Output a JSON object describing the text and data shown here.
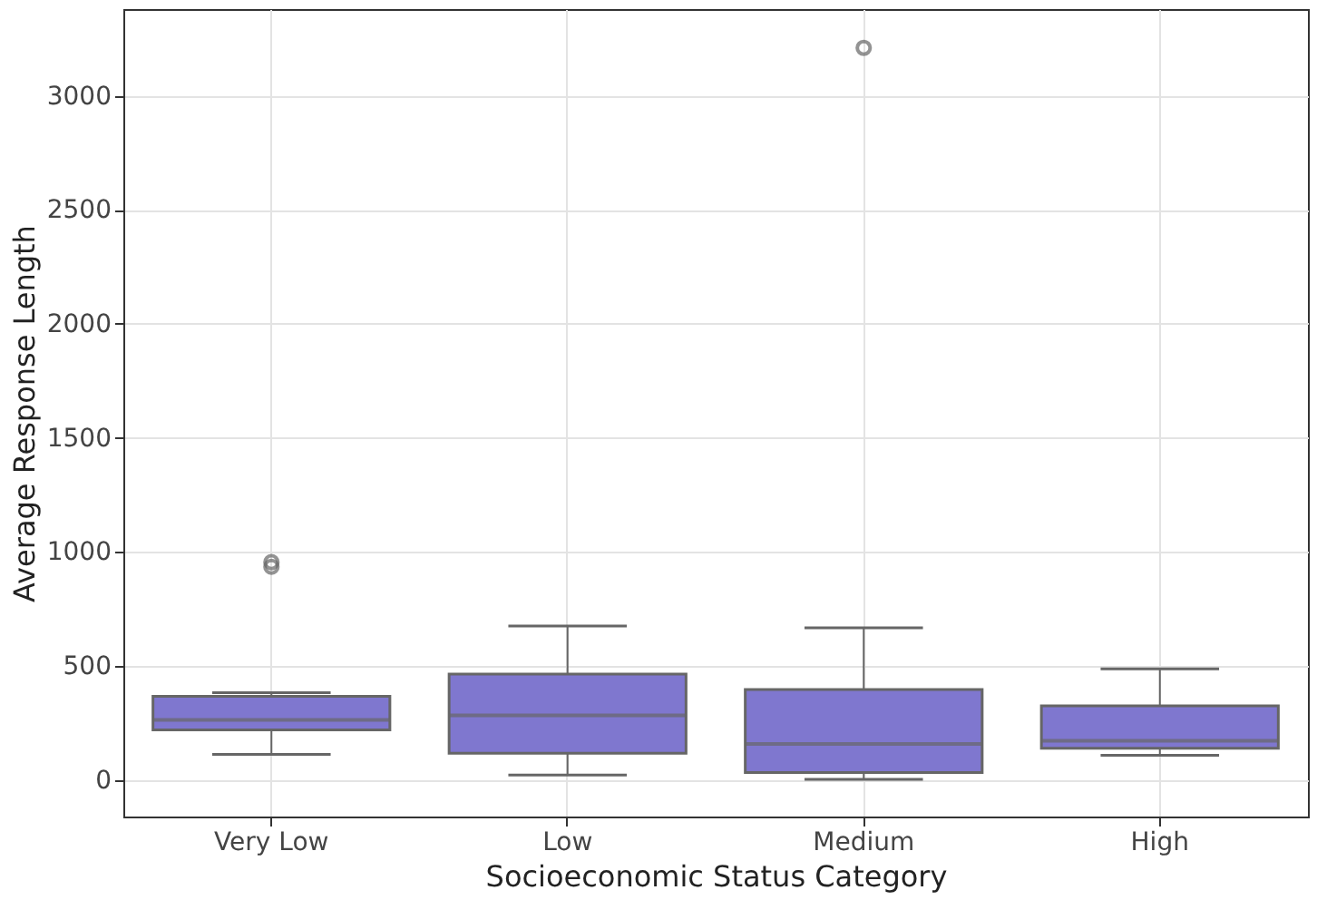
{
  "chart_data": {
    "type": "box",
    "xlabel": "Socioeconomic Status Category",
    "ylabel": "Average Response Length",
    "categories": [
      "Very Low",
      "Low",
      "Medium",
      "High"
    ],
    "boxes": [
      {
        "low": 112,
        "q1": 220,
        "median": 264,
        "q3": 367,
        "high": 383,
        "outliers": [
          955,
          935
        ]
      },
      {
        "low": 22,
        "q1": 117,
        "median": 283,
        "q3": 464,
        "high": 675
      },
      {
        "low": 3,
        "q1": 33,
        "median": 158,
        "q3": 397,
        "high": 667,
        "outliers": [
          3210
        ]
      },
      {
        "low": 108,
        "q1": 139,
        "median": 172,
        "q3": 325,
        "high": 487
      }
    ],
    "color": "#7f77cf",
    "ylim": [
      -160,
      3380
    ],
    "yticks": [
      0,
      500,
      1000,
      1500,
      2000,
      2500,
      3000
    ],
    "grid": true
  }
}
